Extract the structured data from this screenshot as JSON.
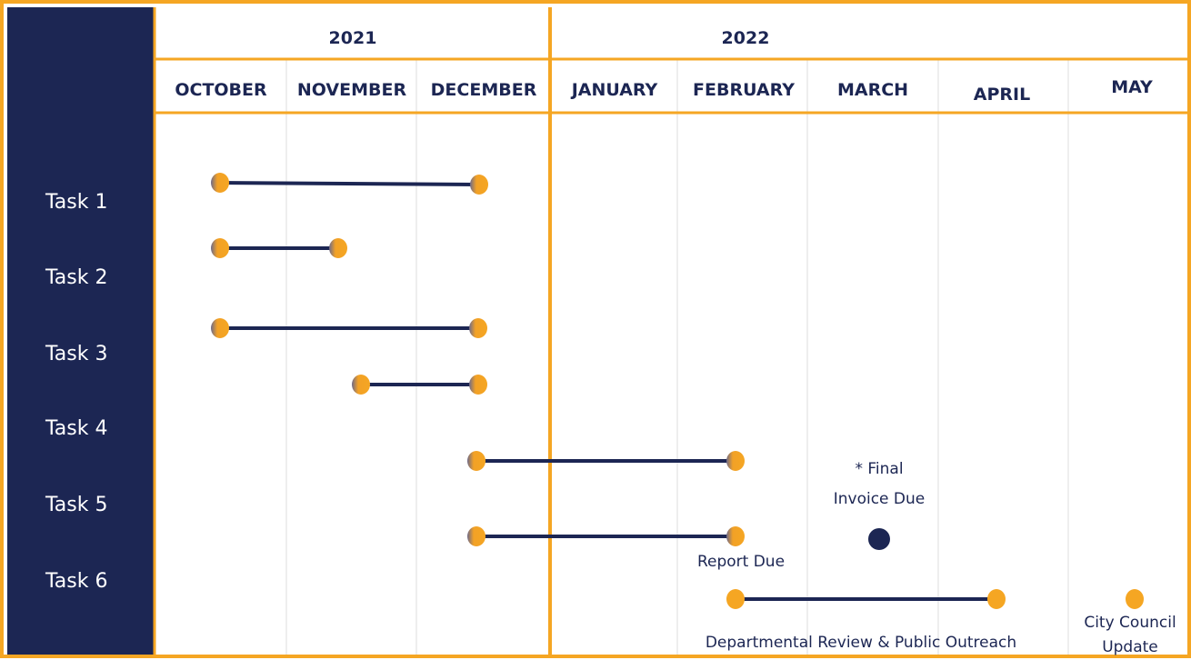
{
  "years": [
    "2021",
    "2022"
  ],
  "months": [
    "OCTOBER",
    "NOVEMBER",
    "DECEMBER",
    "JANUARY",
    "FEBRUARY",
    "MARCH",
    "APRIL",
    "MAY"
  ],
  "tasks": [
    "Task 1",
    "Task 2",
    "Task 3",
    "Task 4",
    "Task 5",
    "Task 6"
  ],
  "annotations": {
    "final_invoice": [
      "* Final",
      "Invoice Due"
    ],
    "report_due": "Report Due",
    "departmental_review": "Departmental Review & Public Outreach",
    "city_council": [
      "City Council",
      "Update"
    ]
  }
}
